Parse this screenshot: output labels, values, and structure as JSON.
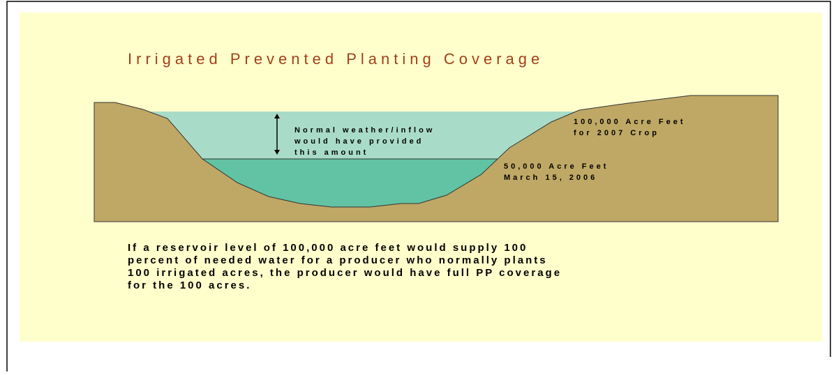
{
  "title": "Irrigated Prevented Planting Coverage",
  "labels": {
    "normal": [
      "Normal weather/inflow",
      "would have provided",
      "this amount"
    ],
    "full_level": [
      "100,000 Acre Feet",
      "for 2007 Crop"
    ],
    "current_level": [
      "50,000 Acre Feet",
      "March 15, 2006"
    ]
  },
  "description": [
    "If a reservoir level of 100,000 acre feet would supply 100",
    "percent of needed water for a producer who normally plants",
    "100 irrigated acres, the producer would have full PP coverage",
    "for the 100 acres."
  ]
}
